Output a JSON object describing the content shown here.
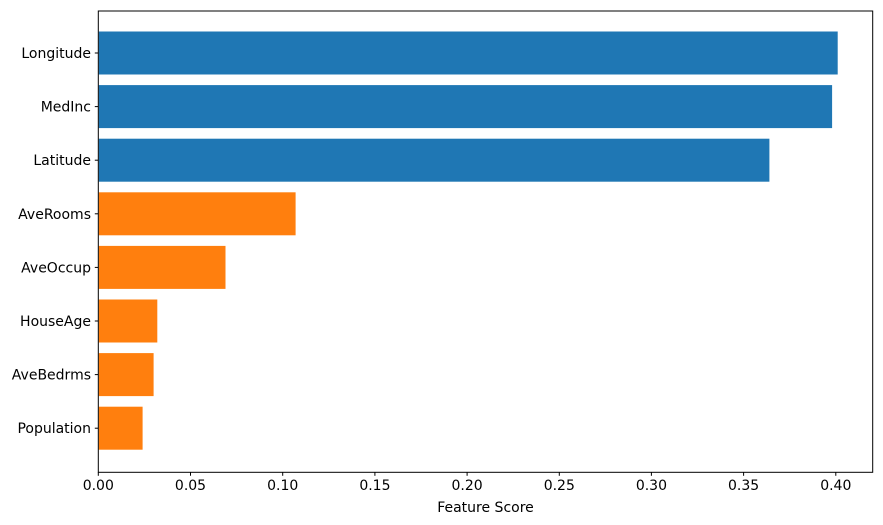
{
  "chart_data": {
    "type": "bar",
    "orientation": "horizontal",
    "title": "",
    "xlabel": "Feature Score",
    "ylabel": "",
    "categories": [
      "Longitude",
      "MedInc",
      "Latitude",
      "AveRooms",
      "AveOccup",
      "HouseAge",
      "AveBedrms",
      "Population"
    ],
    "values": [
      0.401,
      0.398,
      0.364,
      0.107,
      0.069,
      0.032,
      0.03,
      0.024
    ],
    "bar_colors": [
      "#1f77b4",
      "#1f77b4",
      "#1f77b4",
      "#ff7f0e",
      "#ff7f0e",
      "#ff7f0e",
      "#ff7f0e",
      "#ff7f0e"
    ],
    "xlim": [
      0,
      0.42
    ],
    "x_tick_values": [
      0.0,
      0.05,
      0.1,
      0.15,
      0.2,
      0.25,
      0.3,
      0.35,
      0.4
    ],
    "x_tick_labels": [
      "0.00",
      "0.05",
      "0.10",
      "0.15",
      "0.20",
      "0.25",
      "0.30",
      "0.35",
      "0.40"
    ],
    "grid": false,
    "legend": null,
    "colors": {
      "high_score_bar": "#1f77b4",
      "low_score_bar": "#ff7f0e",
      "frame": "#000000",
      "text": "#000000",
      "background": "#ffffff"
    }
  }
}
